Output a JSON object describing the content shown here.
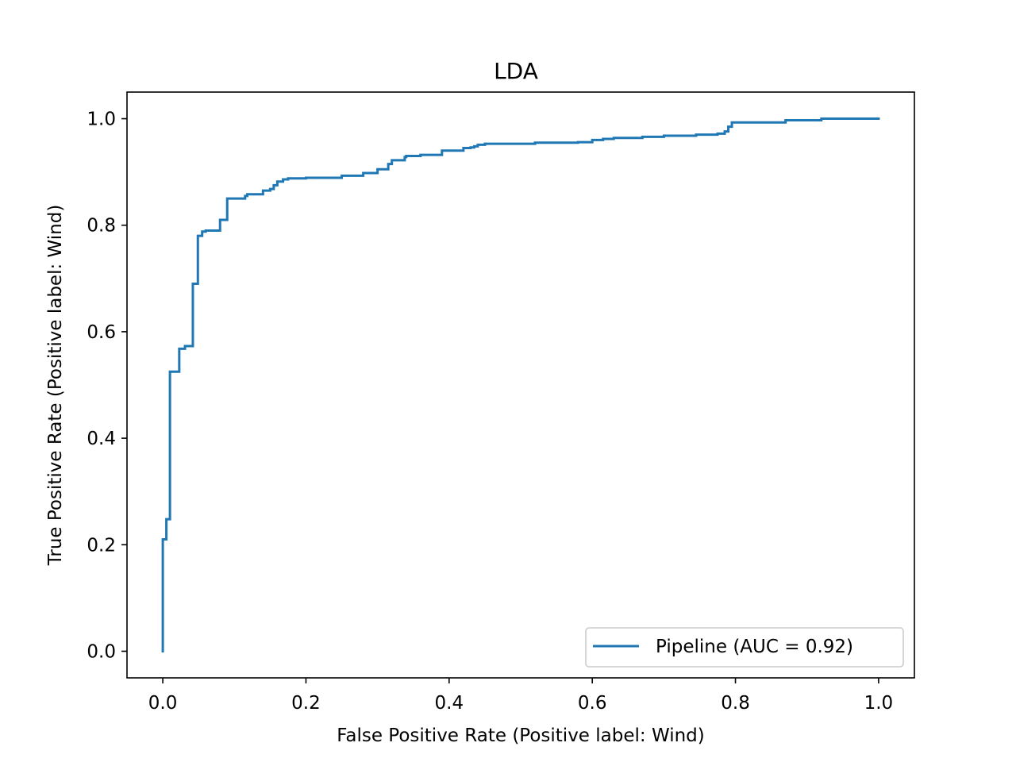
{
  "chart_data": {
    "type": "line",
    "title": "LDA",
    "xlabel": "False Positive Rate (Positive label: Wind)",
    "ylabel": "True Positive Rate (Positive label: Wind)",
    "xlim": [
      -0.05,
      1.05
    ],
    "ylim": [
      -0.05,
      1.05
    ],
    "grid": false,
    "legend_position": "lower-right",
    "xticks": [
      0.0,
      0.2,
      0.4,
      0.6,
      0.8,
      1.0
    ],
    "yticks": [
      0.0,
      0.2,
      0.4,
      0.6,
      0.8,
      1.0
    ],
    "xtick_labels": [
      "0.0",
      "0.2",
      "0.4",
      "0.6",
      "0.8",
      "1.0"
    ],
    "ytick_labels": [
      "0.0",
      "0.2",
      "0.4",
      "0.6",
      "0.8",
      "1.0"
    ],
    "series": [
      {
        "name": "Pipeline (AUC = 0.92)",
        "color": "#1f77b4",
        "drawstyle": "steps-post",
        "x": [
          0.0,
          0.0,
          0.005,
          0.005,
          0.01,
          0.01,
          0.016,
          0.016,
          0.018,
          0.018,
          0.023,
          0.023,
          0.031,
          0.031,
          0.042,
          0.042,
          0.049,
          0.049,
          0.055,
          0.055,
          0.06,
          0.06,
          0.08,
          0.08,
          0.09,
          0.09,
          0.115,
          0.115,
          0.118,
          0.118,
          0.14,
          0.14,
          0.15,
          0.15,
          0.155,
          0.155,
          0.16,
          0.16,
          0.168,
          0.168,
          0.175,
          0.175,
          0.18,
          0.18,
          0.2,
          0.2,
          0.25,
          0.25,
          0.28,
          0.28,
          0.3,
          0.3,
          0.315,
          0.315,
          0.32,
          0.32,
          0.338,
          0.338,
          0.34,
          0.34,
          0.36,
          0.36,
          0.39,
          0.39,
          0.42,
          0.42,
          0.43,
          0.43,
          0.435,
          0.435,
          0.44,
          0.44,
          0.45,
          0.45,
          0.52,
          0.52,
          0.555,
          0.555,
          0.58,
          0.58,
          0.6,
          0.6,
          0.615,
          0.615,
          0.63,
          0.63,
          0.67,
          0.67,
          0.7,
          0.7,
          0.745,
          0.745,
          0.775,
          0.775,
          0.785,
          0.785,
          0.79,
          0.79,
          0.795,
          0.795,
          0.87,
          0.87,
          0.92,
          0.92,
          1.0
        ],
        "y": [
          0.0,
          0.21,
          0.21,
          0.248,
          0.248,
          0.525,
          0.525,
          0.525,
          0.525,
          0.525,
          0.525,
          0.568,
          0.568,
          0.573,
          0.573,
          0.69,
          0.69,
          0.78,
          0.78,
          0.788,
          0.788,
          0.79,
          0.79,
          0.81,
          0.81,
          0.85,
          0.85,
          0.855,
          0.855,
          0.858,
          0.858,
          0.865,
          0.865,
          0.868,
          0.868,
          0.875,
          0.875,
          0.882,
          0.882,
          0.886,
          0.886,
          0.888,
          0.888,
          0.888,
          0.888,
          0.889,
          0.889,
          0.893,
          0.893,
          0.898,
          0.898,
          0.905,
          0.905,
          0.915,
          0.915,
          0.922,
          0.922,
          0.928,
          0.928,
          0.93,
          0.93,
          0.932,
          0.932,
          0.94,
          0.94,
          0.945,
          0.945,
          0.946,
          0.946,
          0.948,
          0.948,
          0.951,
          0.951,
          0.953,
          0.953,
          0.955,
          0.955,
          0.955,
          0.955,
          0.956,
          0.956,
          0.96,
          0.96,
          0.962,
          0.962,
          0.964,
          0.964,
          0.966,
          0.966,
          0.968,
          0.968,
          0.97,
          0.97,
          0.972,
          0.972,
          0.976,
          0.976,
          0.985,
          0.985,
          0.993,
          0.993,
          0.997,
          0.997,
          1.0,
          1.0
        ]
      }
    ]
  }
}
